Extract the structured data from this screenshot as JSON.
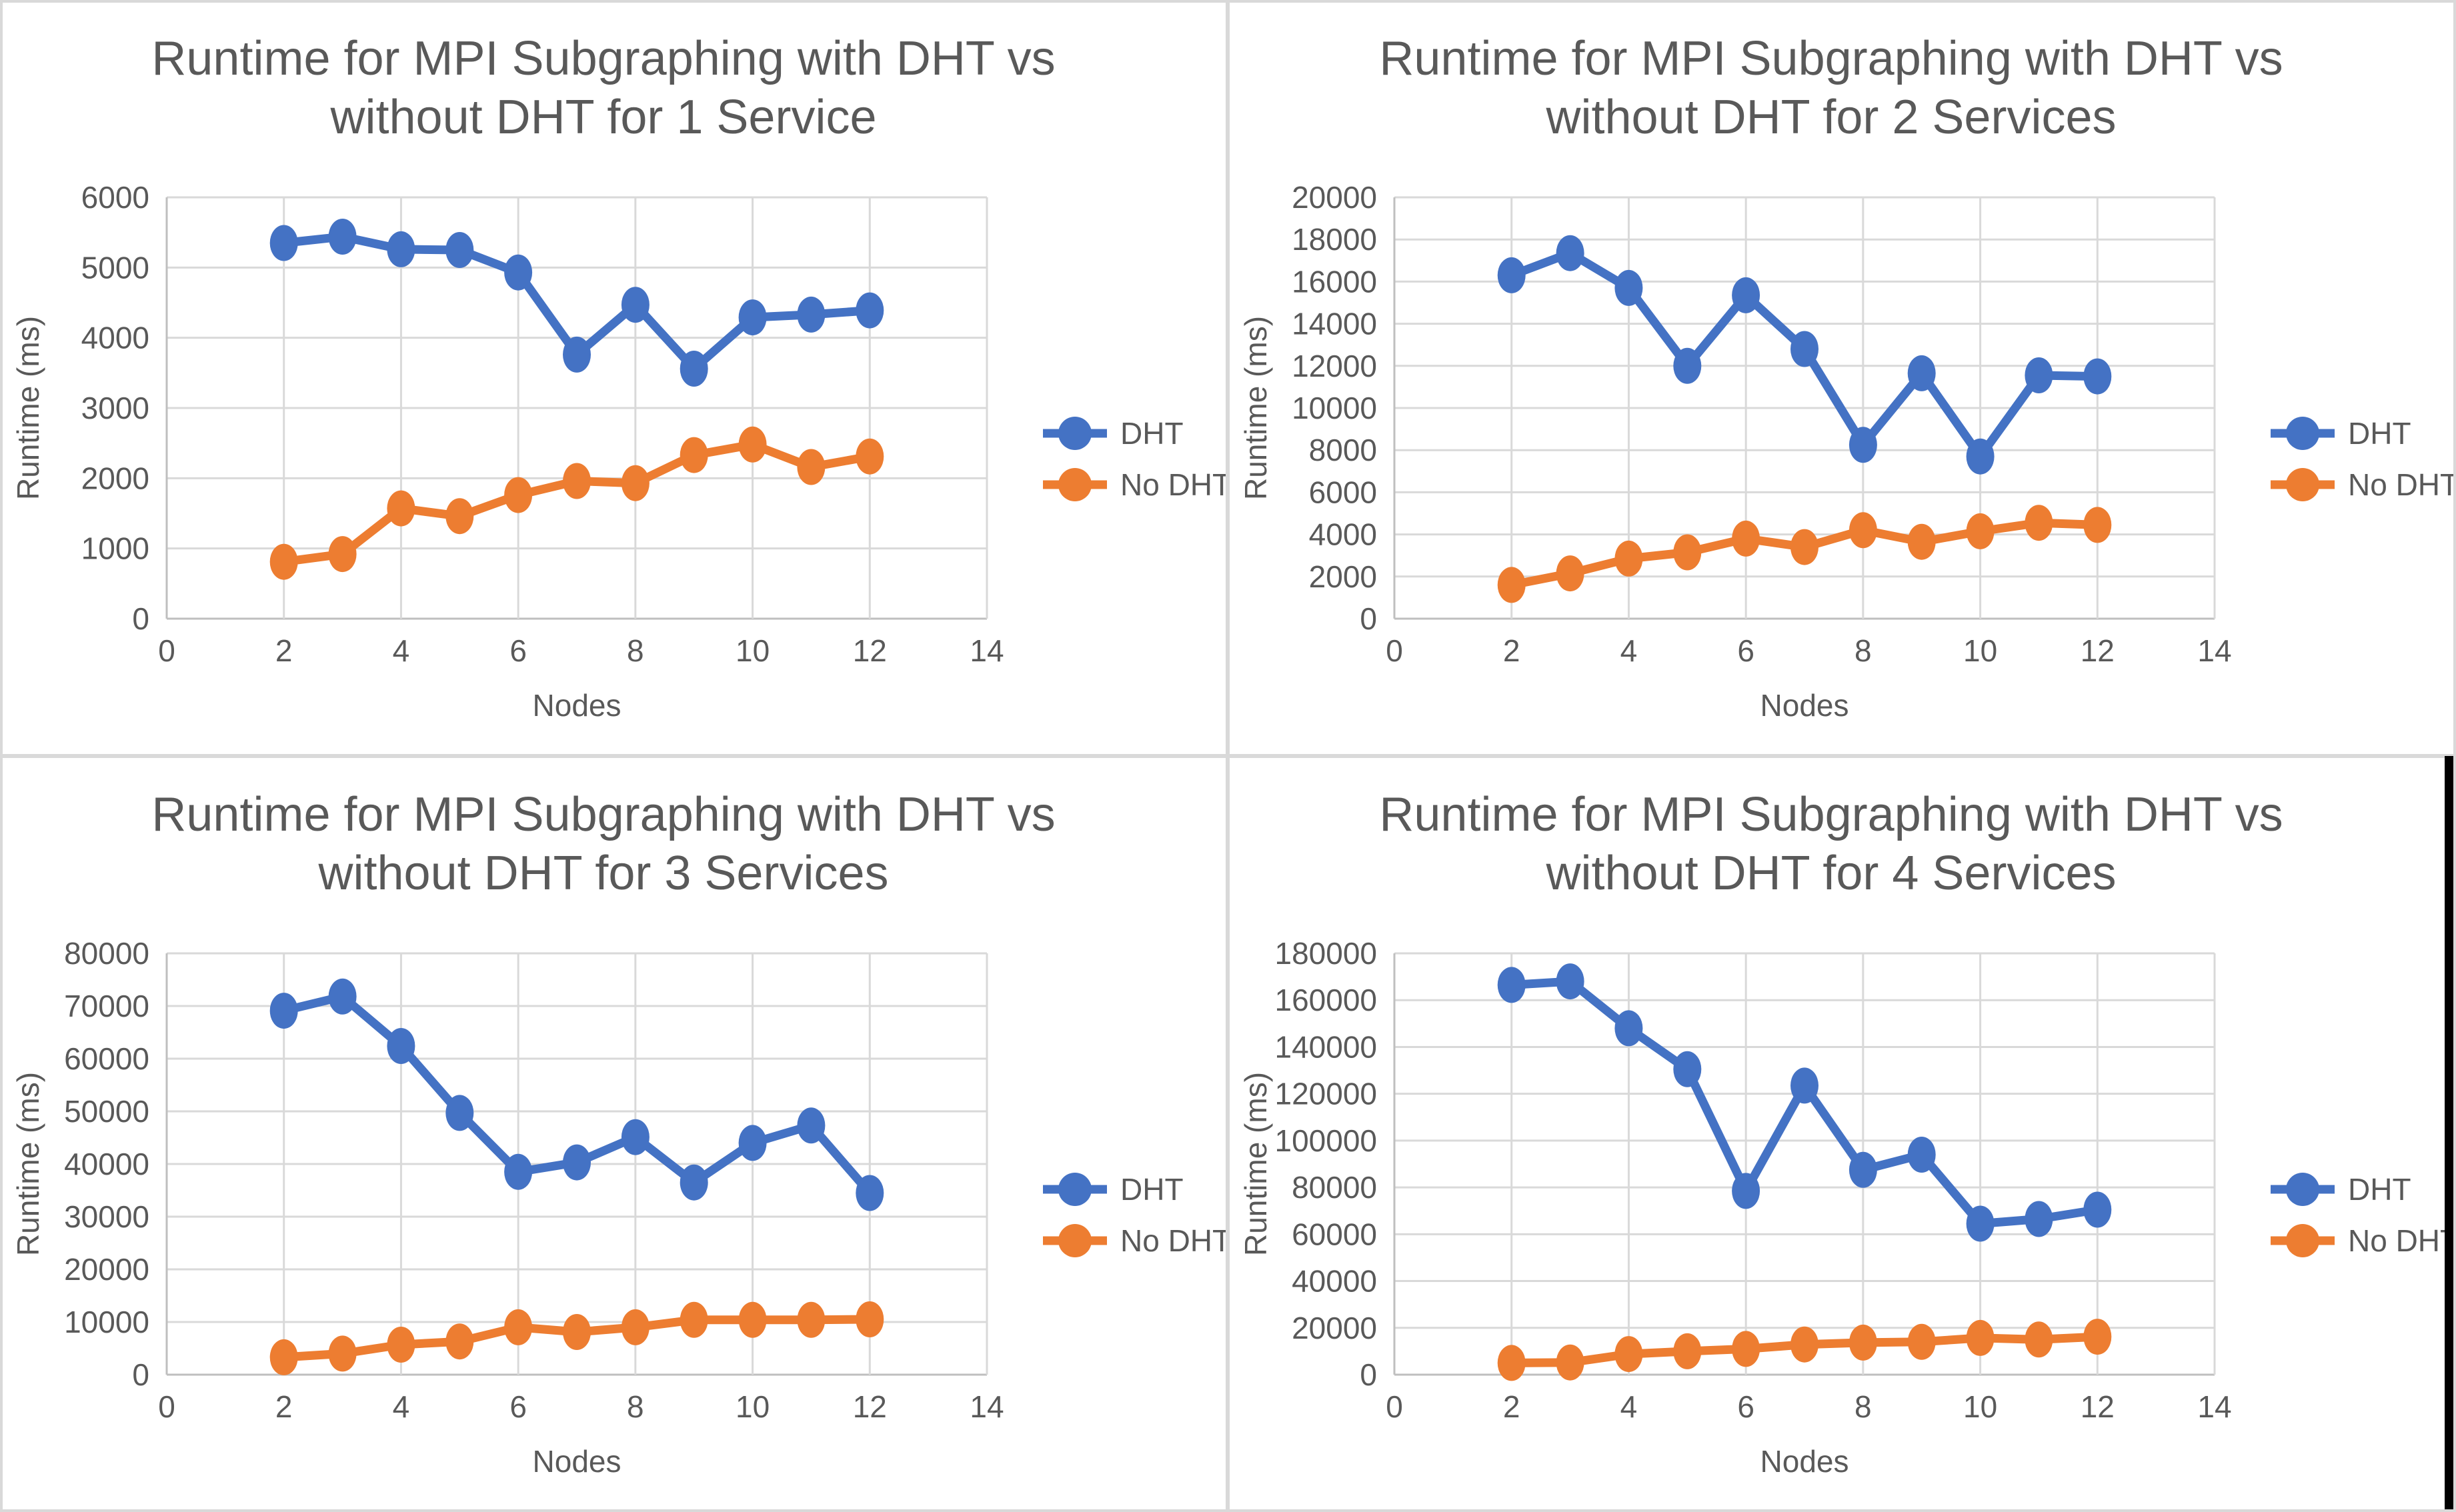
{
  "colors": {
    "dht_blue": "#4472C4",
    "no_dht_orange": "#ED7D31",
    "gridline": "#D9D9D9",
    "axis_line": "#BFBFBF",
    "text": "#595959",
    "panel_border": "#D9D9D9",
    "black_strip": "#000000",
    "background": "#FFFFFF"
  },
  "legend_labels": [
    "DHT",
    "No DHT"
  ],
  "chart_data": [
    {
      "type": "line",
      "title": "Runtime for MPI Subgraphing with DHT vs without DHT for 1 Service",
      "title_line1": "Runtime for MPI Subgraphing with DHT vs",
      "title_line2": "without DHT for 1 Service",
      "xlabel": "Nodes",
      "ylabel": "Runtime (ms)",
      "xlim": [
        0,
        14
      ],
      "xstep": 2,
      "ylim": [
        0,
        6000
      ],
      "ystep": 1000,
      "grid": true,
      "legend_position": "right",
      "x": [
        2,
        3,
        4,
        5,
        6,
        7,
        8,
        9,
        10,
        11,
        12
      ],
      "series": [
        {
          "name": "DHT",
          "color": "#4472C4",
          "values": [
            5350,
            5440,
            5260,
            5250,
            4930,
            3760,
            4470,
            3560,
            4290,
            4330,
            4390
          ]
        },
        {
          "name": "No DHT",
          "color": "#ED7D31",
          "values": [
            810,
            920,
            1570,
            1460,
            1760,
            1960,
            1930,
            2330,
            2480,
            2160,
            2310
          ]
        }
      ]
    },
    {
      "type": "line",
      "title": "Runtime for MPI Subgraphing with DHT vs without DHT for 2 Services",
      "title_line1": "Runtime for MPI Subgraphing with DHT vs",
      "title_line2": "without DHT for 2 Services",
      "xlabel": "Nodes",
      "ylabel": "Runtime (ms)",
      "xlim": [
        0,
        14
      ],
      "xstep": 2,
      "ylim": [
        0,
        20000
      ],
      "ystep": 2000,
      "grid": true,
      "legend_position": "right",
      "x": [
        2,
        3,
        4,
        5,
        6,
        7,
        8,
        9,
        10,
        11,
        12
      ],
      "series": [
        {
          "name": "DHT",
          "color": "#4472C4",
          "values": [
            16300,
            17350,
            15700,
            12000,
            15350,
            12800,
            8250,
            11650,
            7700,
            11550,
            11500
          ]
        },
        {
          "name": "No DHT",
          "color": "#ED7D31",
          "values": [
            1600,
            2150,
            2850,
            3150,
            3800,
            3400,
            4200,
            3650,
            4150,
            4550,
            4450
          ]
        }
      ]
    },
    {
      "type": "line",
      "title": "Runtime for MPI Subgraphing with DHT vs without DHT for 3 Services",
      "title_line1": "Runtime for MPI Subgraphing with DHT vs",
      "title_line2": "without DHT for 3 Services",
      "xlabel": "Nodes",
      "ylabel": "Runtime (ms)",
      "xlim": [
        0,
        14
      ],
      "xstep": 2,
      "ylim": [
        0,
        80000
      ],
      "ystep": 10000,
      "grid": true,
      "legend_position": "right",
      "x": [
        2,
        3,
        4,
        5,
        6,
        7,
        8,
        9,
        10,
        11,
        12
      ],
      "series": [
        {
          "name": "DHT",
          "color": "#4472C4",
          "values": [
            69100,
            71800,
            62400,
            49700,
            38500,
            40300,
            45100,
            36500,
            44000,
            47300,
            34500
          ]
        },
        {
          "name": "No DHT",
          "color": "#ED7D31",
          "values": [
            3300,
            4000,
            5700,
            6300,
            9000,
            8100,
            9000,
            10400,
            10400,
            10400,
            10500
          ]
        }
      ]
    },
    {
      "type": "line",
      "title": "Runtime for MPI Subgraphing with DHT vs without DHT for 4 Services",
      "title_line1": "Runtime for MPI Subgraphing with DHT vs",
      "title_line2": "without DHT for 4 Services",
      "xlabel": "Nodes",
      "ylabel": "Runtime (ms)",
      "xlim": [
        0,
        14
      ],
      "xstep": 2,
      "ylim": [
        0,
        180000
      ],
      "ystep": 20000,
      "grid": true,
      "legend_position": "right",
      "x": [
        2,
        3,
        4,
        5,
        6,
        7,
        8,
        9,
        10,
        11,
        12
      ],
      "series": [
        {
          "name": "DHT",
          "color": "#4472C4",
          "values": [
            166500,
            168000,
            148000,
            130500,
            78500,
            123500,
            87500,
            94000,
            64500,
            66500,
            70500
          ]
        },
        {
          "name": "No DHT",
          "color": "#ED7D31",
          "values": [
            5000,
            5200,
            8800,
            10000,
            11000,
            12900,
            13700,
            14000,
            15700,
            15000,
            16200
          ]
        }
      ]
    }
  ]
}
